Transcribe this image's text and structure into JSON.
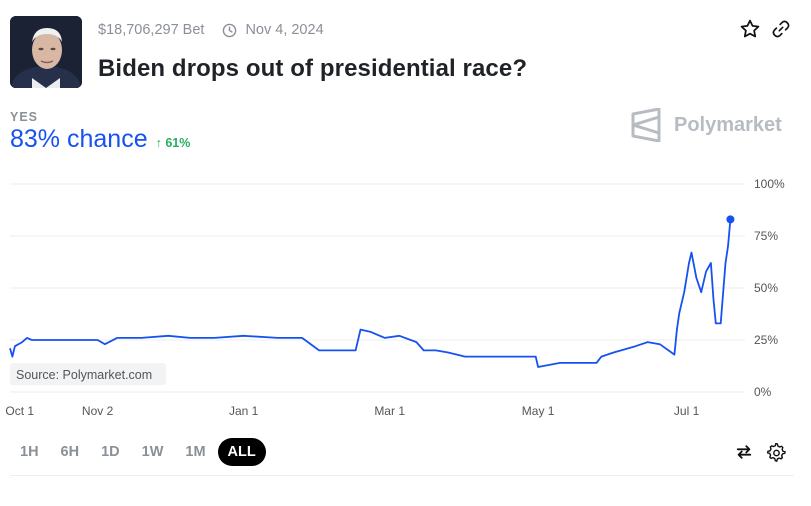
{
  "market": {
    "volume": "$18,706,297 Bet",
    "end_date": "Nov 4, 2024",
    "title": "Biden drops out of presidential race?"
  },
  "outcome": {
    "label": "YES",
    "chance": "83% chance",
    "change": "61%"
  },
  "brand": {
    "name": "Polymarket"
  },
  "ranges": [
    {
      "label": "1H",
      "active": false
    },
    {
      "label": "6H",
      "active": false
    },
    {
      "label": "1D",
      "active": false
    },
    {
      "label": "1W",
      "active": false
    },
    {
      "label": "1M",
      "active": false
    },
    {
      "label": "ALL",
      "active": true
    }
  ],
  "icons": {
    "clock": "clock-icon",
    "star": "star-icon",
    "link": "link-icon",
    "swap": "swap-icon",
    "settings": "gear-icon"
  },
  "colors": {
    "accent": "#1652f0",
    "positive": "#27ae60",
    "muted": "#8a8f98"
  },
  "chart_data": {
    "type": "line",
    "title": "",
    "xlabel": "",
    "ylabel": "",
    "source": "Source: Polymarket.com",
    "x_ticks": [
      "Oct 1",
      "Nov 2",
      "Jan 1",
      "Mar 1",
      "May 1",
      "Jul 1"
    ],
    "y_ticks": [
      "100%",
      "75%",
      "50%",
      "25%",
      "0%"
    ],
    "ylim": [
      0,
      100
    ],
    "grid": true,
    "series": [
      {
        "color": "#1652f0",
        "points": [
          [
            "2023-09-27",
            21
          ],
          [
            "2023-09-28",
            17
          ],
          [
            "2023-09-29",
            22
          ],
          [
            "2023-10-02",
            24
          ],
          [
            "2023-10-04",
            26
          ],
          [
            "2023-10-06",
            25
          ],
          [
            "2023-10-15",
            25
          ],
          [
            "2023-10-25",
            25
          ],
          [
            "2023-11-02",
            25
          ],
          [
            "2023-11-05",
            23
          ],
          [
            "2023-11-10",
            26
          ],
          [
            "2023-11-20",
            26
          ],
          [
            "2023-12-01",
            27
          ],
          [
            "2023-12-10",
            26
          ],
          [
            "2023-12-20",
            26
          ],
          [
            "2024-01-01",
            27
          ],
          [
            "2024-01-15",
            26
          ],
          [
            "2024-01-25",
            26
          ],
          [
            "2024-02-01",
            20
          ],
          [
            "2024-02-10",
            20
          ],
          [
            "2024-02-16",
            20
          ],
          [
            "2024-02-18",
            30
          ],
          [
            "2024-02-22",
            29
          ],
          [
            "2024-02-28",
            26
          ],
          [
            "2024-03-05",
            27
          ],
          [
            "2024-03-12",
            24
          ],
          [
            "2024-03-15",
            20
          ],
          [
            "2024-03-20",
            20
          ],
          [
            "2024-03-25",
            19
          ],
          [
            "2024-04-01",
            17
          ],
          [
            "2024-04-10",
            17
          ],
          [
            "2024-04-20",
            17
          ],
          [
            "2024-04-30",
            17
          ],
          [
            "2024-05-01",
            12
          ],
          [
            "2024-05-10",
            14
          ],
          [
            "2024-05-15",
            14
          ],
          [
            "2024-05-25",
            14
          ],
          [
            "2024-05-27",
            17
          ],
          [
            "2024-06-01",
            19
          ],
          [
            "2024-06-10",
            22
          ],
          [
            "2024-06-15",
            24
          ],
          [
            "2024-06-20",
            23
          ],
          [
            "2024-06-26",
            18
          ],
          [
            "2024-06-27",
            30
          ],
          [
            "2024-06-28",
            38
          ],
          [
            "2024-06-30",
            48
          ],
          [
            "2024-07-02",
            62
          ],
          [
            "2024-07-03",
            67
          ],
          [
            "2024-07-05",
            55
          ],
          [
            "2024-07-07",
            48
          ],
          [
            "2024-07-09",
            58
          ],
          [
            "2024-07-11",
            62
          ],
          [
            "2024-07-12",
            45
          ],
          [
            "2024-07-13",
            33
          ],
          [
            "2024-07-15",
            33
          ],
          [
            "2024-07-17",
            62
          ],
          [
            "2024-07-18",
            70
          ],
          [
            "2024-07-19",
            83
          ]
        ]
      }
    ]
  }
}
